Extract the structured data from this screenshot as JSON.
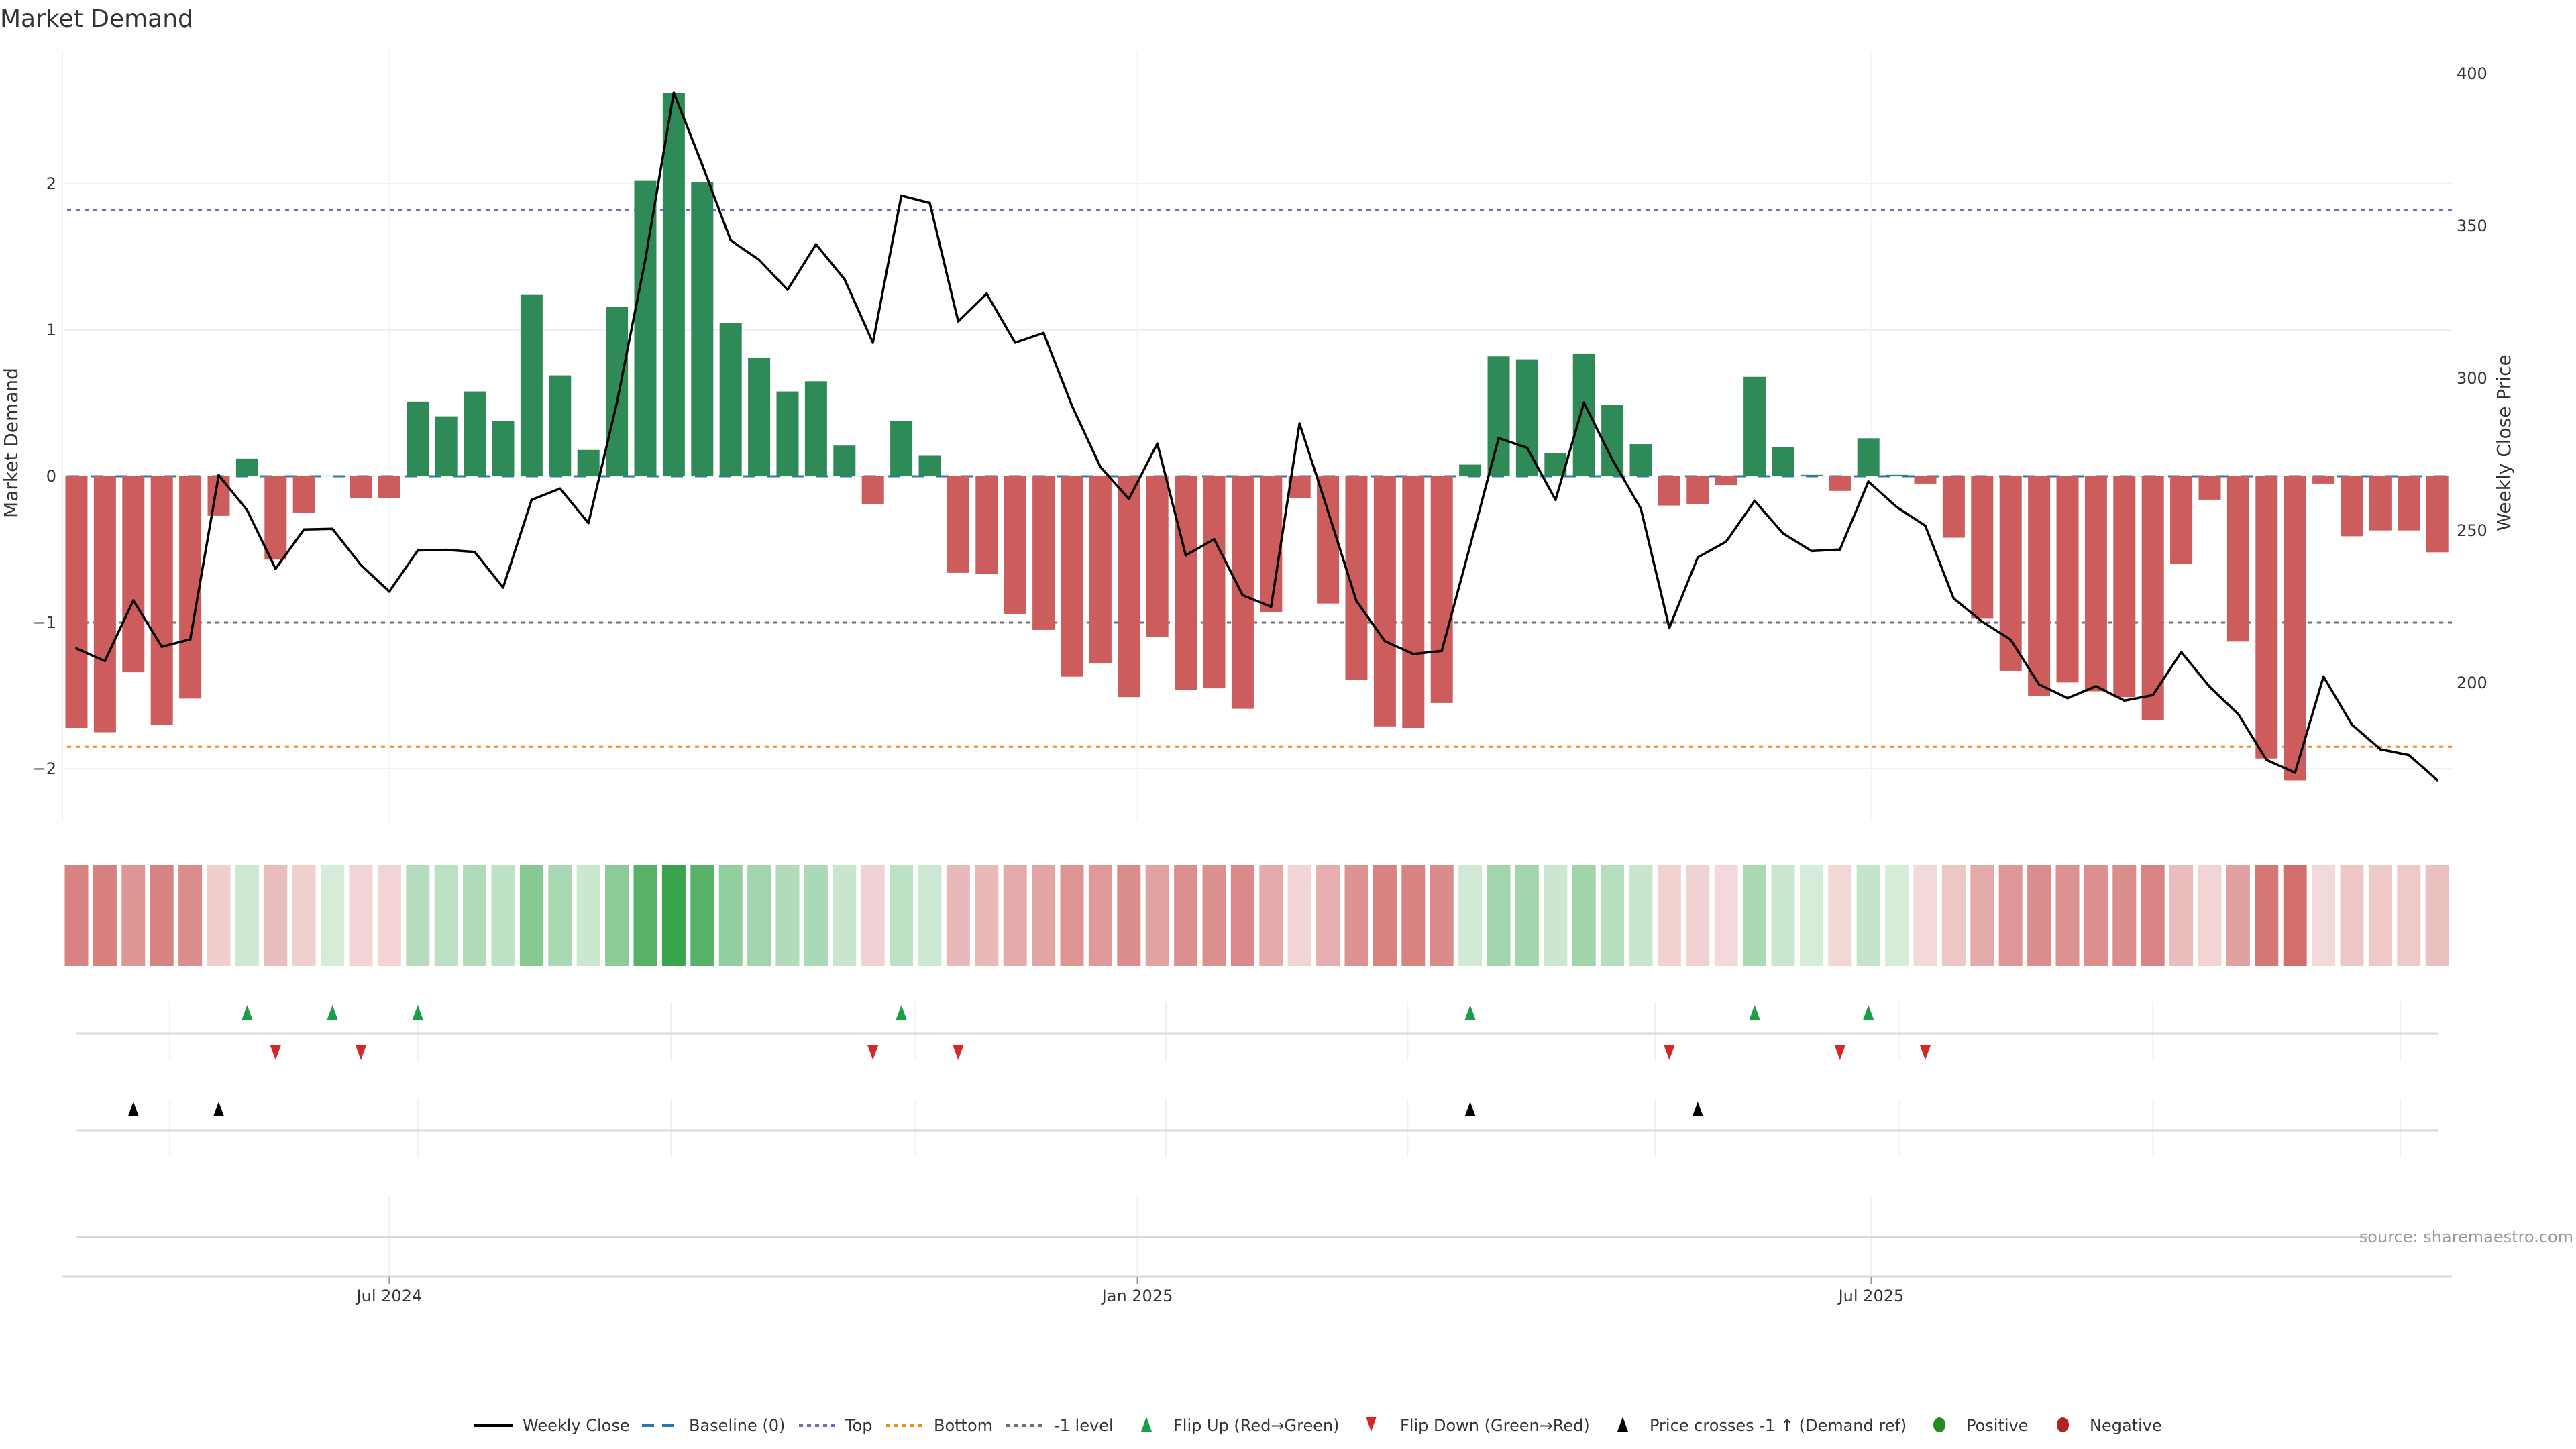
{
  "chart_data": {
    "type": "bar",
    "title": "Market Demand",
    "ylabel": "Market Demand",
    "y2label": "Weekly Close Price",
    "ylim": [
      -2.35,
      2.95
    ],
    "y2lim": [
      163,
      407
    ],
    "yticks": [
      {
        "value": 2,
        "label": "2"
      },
      {
        "value": 1,
        "label": "1"
      },
      {
        "value": 0,
        "label": "0"
      },
      {
        "value": -1,
        "label": "−1"
      },
      {
        "value": -2,
        "label": "−2"
      }
    ],
    "y2ticks": [
      {
        "value": 400,
        "label": "400"
      },
      {
        "value": 350,
        "label": "350"
      },
      {
        "value": 300,
        "label": "300"
      },
      {
        "value": 250,
        "label": "250"
      },
      {
        "value": 200,
        "label": "200"
      }
    ],
    "xticks": [
      {
        "week": 12.0,
        "label": "Jul 2024"
      },
      {
        "week": 38.3,
        "label": "Jan 2025"
      },
      {
        "week": 64.1,
        "label": "Jul 2025"
      }
    ],
    "grid": true,
    "reference_lines": {
      "baseline": 0,
      "top": 1.82,
      "bottom": -1.85,
      "minus_one": -1
    },
    "series": [
      {
        "name": "Market Demand",
        "kind": "bar",
        "values": [
          -1.72,
          -1.75,
          -1.34,
          -1.7,
          -1.52,
          -0.27,
          0.12,
          -0.57,
          -0.25,
          0.005,
          -0.15,
          -0.15,
          0.51,
          0.41,
          0.58,
          0.38,
          1.24,
          0.69,
          0.18,
          1.16,
          2.02,
          2.62,
          2.01,
          1.05,
          0.81,
          0.58,
          0.65,
          0.21,
          -0.19,
          0.38,
          0.14,
          -0.66,
          -0.67,
          -0.94,
          -1.05,
          -1.37,
          -1.28,
          -1.51,
          -1.1,
          -1.46,
          -1.45,
          -1.59,
          -0.93,
          -0.15,
          -0.87,
          -1.39,
          -1.71,
          -1.72,
          -1.55,
          0.08,
          0.82,
          0.8,
          0.16,
          0.84,
          0.49,
          0.22,
          -0.2,
          -0.19,
          -0.06,
          0.68,
          0.2,
          0.01,
          -0.1,
          0.26,
          0.01,
          -0.05,
          -0.42,
          -0.97,
          -1.33,
          -1.5,
          -1.41,
          -1.47,
          -1.51,
          -1.67,
          -0.6,
          -0.16,
          -1.13,
          -1.93,
          -2.08,
          -0.05,
          -0.41,
          -0.37,
          -0.37,
          -0.52
        ]
      },
      {
        "name": "Weekly Close",
        "kind": "line",
        "axis": "right",
        "values": [
          211.3,
          207.2,
          227.1,
          211.9,
          214.3,
          268.2,
          256.7,
          237.5,
          250.4,
          250.6,
          238.7,
          230.0,
          243.5,
          243.7,
          243.0,
          231.3,
          260.1,
          263.8,
          252.5,
          292.0,
          339.0,
          393.8,
          370.1,
          345.3,
          338.9,
          329.1,
          344.0,
          332.6,
          311.7,
          360.0,
          357.6,
          318.7,
          327.8,
          311.7,
          314.9,
          291.0,
          270.9,
          260.4,
          278.6,
          241.9,
          247.2,
          228.8,
          225.0,
          285.2,
          256.4,
          226.9,
          213.7,
          209.5,
          210.5,
          245.1,
          280.4,
          277.2,
          260.1,
          292.0,
          273.3,
          257.2,
          218.1,
          241.2,
          246.4,
          259.8,
          249.1,
          243.3,
          243.8,
          266.1,
          257.7,
          251.6,
          227.7,
          220.1,
          214.2,
          199.5,
          195.0,
          198.9,
          194.2,
          196.0,
          210.1,
          198.7,
          189.8,
          174.7,
          170.5,
          202.1,
          186.3,
          178.2,
          176.3,
          168.1
        ]
      }
    ],
    "events": {
      "flip_up_weeks": [
        7,
        10,
        13,
        30,
        50,
        60,
        64
      ],
      "flip_down_weeks": [
        8,
        11,
        29,
        32,
        57,
        63,
        66
      ],
      "price_cross_weeks": [
        3,
        6,
        50,
        58
      ]
    },
    "legend": {
      "placement": "bottom-center",
      "items": [
        {
          "key": "weekly_close",
          "label": "Weekly Close"
        },
        {
          "key": "baseline",
          "label": "Baseline (0)"
        },
        {
          "key": "top",
          "label": "Top"
        },
        {
          "key": "bottom",
          "label": "Bottom"
        },
        {
          "key": "minus_one",
          "label": "-1 level"
        },
        {
          "key": "flip_up",
          "label": "Flip Up (Red→Green)"
        },
        {
          "key": "flip_down",
          "label": "Flip Down (Green→Red)"
        },
        {
          "key": "price_cross",
          "label": "Price crosses -1 ↑ (Demand ref)"
        },
        {
          "key": "positive",
          "label": "Positive"
        },
        {
          "key": "negative",
          "label": "Negative"
        }
      ]
    },
    "annotation": "source: sharemaestro.com"
  },
  "colors": {
    "positive_bar": "#2e8b57",
    "negative_bar": "#cd5c5c",
    "positive_strip": "#2ea043",
    "negative_strip": "#c8504f",
    "price_line": "#000000",
    "baseline": "#2a77b0",
    "top": "#7466c0",
    "bottom": "#f08c1e",
    "minus_one": "#707070",
    "flip_up": "#1a9e4a",
    "flip_down": "#d62728",
    "price_cross": "#000000",
    "positive_legend": "#228b22",
    "negative_legend": "#b22222",
    "grid": "#eef0f3",
    "row_line": "#d9d9d9"
  }
}
